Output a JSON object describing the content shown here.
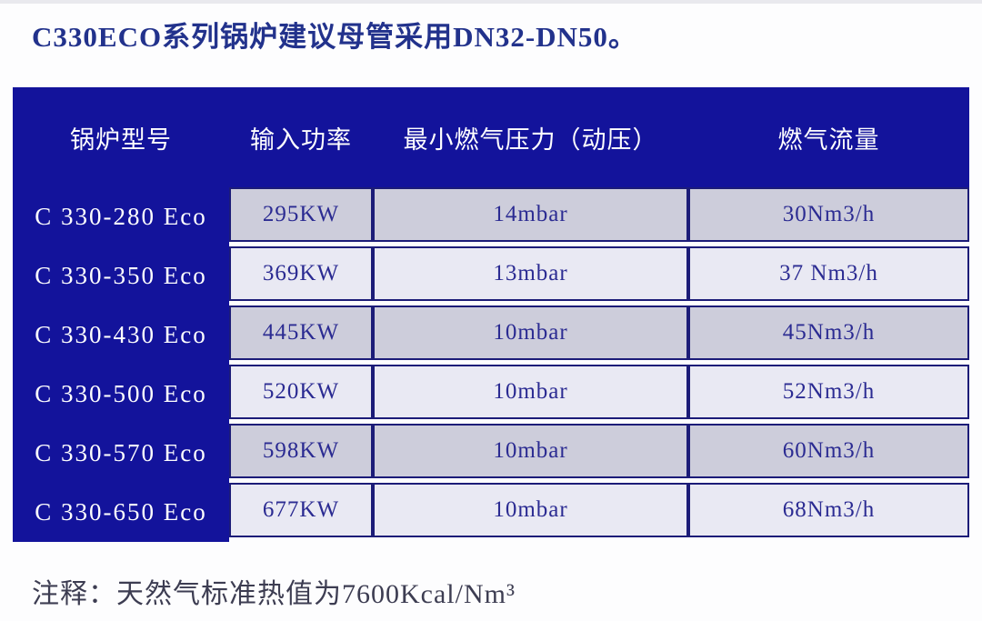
{
  "page": {
    "title": "C330ECO系列锅炉建议母管采用DN32-DN50。",
    "note": "注释：天然气标准热值为7600Kcal/Nm³"
  },
  "table": {
    "columns": {
      "model": "锅炉型号",
      "power": "输入功率",
      "pressure": "最小燃气压力（动压）",
      "flow": "燃气流量"
    },
    "rows": [
      {
        "model": "C 330-280 Eco",
        "power": "295KW",
        "pressure": "14mbar",
        "flow": "30Nm3/h"
      },
      {
        "model": "C 330-350 Eco",
        "power": "369KW",
        "pressure": "13mbar",
        "flow": "37 Nm3/h"
      },
      {
        "model": "C 330-430 Eco",
        "power": "445KW",
        "pressure": "10mbar",
        "flow": "45Nm3/h"
      },
      {
        "model": "C 330-500 Eco",
        "power": "520KW",
        "pressure": "10mbar",
        "flow": "52Nm3/h"
      },
      {
        "model": "C 330-570 Eco",
        "power": "598KW",
        "pressure": "10mbar",
        "flow": "60Nm3/h"
      },
      {
        "model": "C 330-650 Eco",
        "power": "677KW",
        "pressure": "10mbar",
        "flow": "68Nm3/h"
      }
    ]
  },
  "chart_data": {
    "type": "table",
    "title": "C330ECO系列锅炉建议母管采用DN32-DN50。",
    "columns": [
      "锅炉型号",
      "输入功率",
      "最小燃气压力（动压）",
      "燃气流量"
    ],
    "rows": [
      [
        "C 330-280 Eco",
        "295KW",
        "14mbar",
        "30Nm3/h"
      ],
      [
        "C 330-350 Eco",
        "369KW",
        "13mbar",
        "37 Nm3/h"
      ],
      [
        "C 330-430 Eco",
        "445KW",
        "10mbar",
        "45Nm3/h"
      ],
      [
        "C 330-500 Eco",
        "520KW",
        "10mbar",
        "52Nm3/h"
      ],
      [
        "C 330-570 Eco",
        "598KW",
        "10mbar",
        "60Nm3/h"
      ],
      [
        "C 330-650 Eco",
        "677KW",
        "10mbar",
        "68Nm3/h"
      ]
    ],
    "footnote": "注释：天然气标准热值为7600Kcal/Nm³"
  },
  "colors": {
    "table_header_bg": "#13139b",
    "cell_border": "#1c1c78",
    "row_odd_bg": "#cdcddb",
    "row_even_bg": "#e9e9f3",
    "title_text": "#22328c",
    "cell_text": "#2b2b92",
    "note_text": "#3d3d52"
  }
}
